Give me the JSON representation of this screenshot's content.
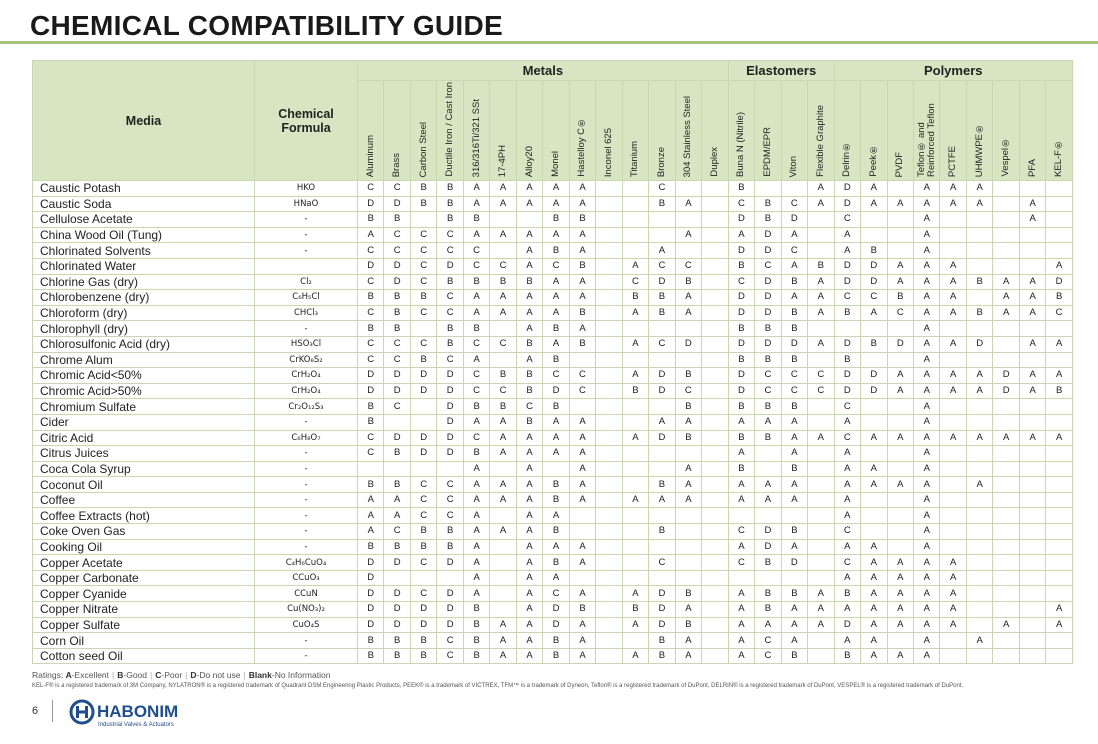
{
  "header": {
    "title": "CHEMICAL COMPATIBILITY GUIDE"
  },
  "table": {
    "media_header": "Media",
    "formula_header": "Chemical Formula",
    "groups": [
      {
        "name": "Metals",
        "materials": [
          "Aluminum",
          "Brass",
          "Carbon Steel",
          "Ductile Iron / Cast Iron",
          "316/316Ti/321 SSt",
          "17-4PH",
          "Alloy20",
          "Monel",
          "Hastelloy C®",
          "Inconel 625",
          "Titanium",
          "Bronze",
          "304 Stainless Steel",
          "Duplex"
        ]
      },
      {
        "name": "Elastomers",
        "materials": [
          "Buna N (Nitrile)",
          "EPDM/EPR",
          "Viton",
          "Flexible Graphite"
        ]
      },
      {
        "name": "Polymers",
        "materials": [
          "Delrin®",
          "Peek®",
          "PVDF",
          "Teflon® and Reinforced Teflon",
          "PCTFE",
          "UHMWPE®",
          "Vespel®",
          "PFA",
          "KEL-F®"
        ]
      }
    ],
    "rows": [
      {
        "media": "Caustic Potash",
        "formula": "HKO",
        "ratings": [
          "C",
          "C",
          "B",
          "B",
          "A",
          "A",
          "A",
          "A",
          "A",
          null,
          null,
          "C",
          null,
          null,
          "B",
          null,
          null,
          "A",
          "D",
          "A",
          null,
          "A",
          "A",
          "A",
          null,
          null,
          null
        ]
      },
      {
        "media": "Caustic Soda",
        "formula": "HNaO",
        "ratings": [
          "D",
          "D",
          "B",
          "B",
          "A",
          "A",
          "A",
          "A",
          "A",
          null,
          null,
          "B",
          "A",
          null,
          "C",
          "B",
          "C",
          "A",
          "D",
          "A",
          "A",
          "A",
          "A",
          "A",
          null,
          "A",
          null
        ]
      },
      {
        "media": "Cellulose Acetate",
        "formula": "-",
        "ratings": [
          "B",
          "B",
          null,
          "B",
          "B",
          null,
          null,
          "B",
          "B",
          null,
          null,
          null,
          null,
          null,
          "D",
          "B",
          "D",
          null,
          "C",
          null,
          null,
          "A",
          null,
          null,
          null,
          "A",
          null
        ]
      },
      {
        "media": "China Wood Oil (Tung)",
        "formula": "-",
        "ratings": [
          "A",
          "C",
          "C",
          "C",
          "A",
          "A",
          "A",
          "A",
          "A",
          null,
          null,
          null,
          "A",
          null,
          "A",
          "D",
          "A",
          null,
          "A",
          null,
          null,
          "A",
          null,
          null,
          null,
          null,
          null
        ]
      },
      {
        "media": "Chlorinated Solvents",
        "formula": "-",
        "ratings": [
          "C",
          "C",
          "C",
          "C",
          "C",
          null,
          "A",
          "B",
          "A",
          null,
          null,
          "A",
          null,
          null,
          "D",
          "D",
          "C",
          null,
          "A",
          "B",
          null,
          "A",
          null,
          null,
          null,
          null,
          null
        ]
      },
      {
        "media": "Chlorinated Water",
        "formula": null,
        "ratings": [
          "D",
          "D",
          "C",
          "D",
          "C",
          "C",
          "A",
          "C",
          "B",
          null,
          "A",
          "C",
          "C",
          null,
          "B",
          "C",
          "A",
          "B",
          "D",
          "D",
          "A",
          "A",
          "A",
          null,
          null,
          null,
          "A"
        ]
      },
      {
        "media": "Chlorine Gas (dry)",
        "formula": "Cl₂",
        "ratings": [
          "C",
          "D",
          "C",
          "B",
          "B",
          "B",
          "B",
          "A",
          "A",
          null,
          "C",
          "D",
          "B",
          null,
          "C",
          "D",
          "B",
          "A",
          "D",
          "D",
          "A",
          "A",
          "A",
          "B",
          "A",
          "A",
          "D"
        ]
      },
      {
        "media": "Chlorobenzene (dry)",
        "formula": "C₆H₅Cl",
        "ratings": [
          "B",
          "B",
          "B",
          "C",
          "A",
          "A",
          "A",
          "A",
          "A",
          null,
          "B",
          "B",
          "A",
          null,
          "D",
          "D",
          "A",
          "A",
          "C",
          "C",
          "B",
          "A",
          "A",
          null,
          "A",
          "A",
          "B"
        ]
      },
      {
        "media": "Chloroform (dry)",
        "formula": "CHCl₃",
        "ratings": [
          "C",
          "B",
          "C",
          "C",
          "A",
          "A",
          "A",
          "A",
          "B",
          null,
          "A",
          "B",
          "A",
          null,
          "D",
          "D",
          "B",
          "A",
          "B",
          "A",
          "C",
          "A",
          "A",
          "B",
          "A",
          "A",
          "C"
        ]
      },
      {
        "media": "Chlorophyll (dry)",
        "formula": "-",
        "ratings": [
          "B",
          "B",
          null,
          "B",
          "B",
          null,
          "A",
          "B",
          "A",
          null,
          null,
          null,
          null,
          null,
          "B",
          "B",
          "B",
          null,
          null,
          null,
          null,
          "A",
          null,
          null,
          null,
          null,
          null
        ]
      },
      {
        "media": "Chlorosulfonic Acid (dry)",
        "formula": "HSO₃Cl",
        "ratings": [
          "C",
          "C",
          "C",
          "B",
          "C",
          "C",
          "B",
          "A",
          "B",
          null,
          "A",
          "C",
          "D",
          null,
          "D",
          "D",
          "D",
          "A",
          "D",
          "B",
          "D",
          "A",
          "A",
          "D",
          null,
          "A",
          "A"
        ]
      },
      {
        "media": "Chrome Alum",
        "formula": "CrKO₈S₂",
        "ratings": [
          "C",
          "C",
          "B",
          "C",
          "A",
          null,
          "A",
          "B",
          null,
          null,
          null,
          null,
          null,
          null,
          "B",
          "B",
          "B",
          null,
          "B",
          null,
          null,
          "A",
          null,
          null,
          null,
          null,
          null
        ]
      },
      {
        "media": "Chromic Acid<50%",
        "formula": "CrH₂O₄",
        "ratings": [
          "D",
          "D",
          "D",
          "D",
          "C",
          "B",
          "B",
          "C",
          "C",
          null,
          "A",
          "D",
          "B",
          null,
          "D",
          "C",
          "C",
          "C",
          "D",
          "D",
          "A",
          "A",
          "A",
          "A",
          "D",
          "A",
          "A"
        ]
      },
      {
        "media": "Chromic Acid>50%",
        "formula": "CrH₂O₄",
        "ratings": [
          "D",
          "D",
          "D",
          "D",
          "C",
          "C",
          "B",
          "D",
          "C",
          null,
          "B",
          "D",
          "C",
          null,
          "D",
          "C",
          "C",
          "C",
          "D",
          "D",
          "A",
          "A",
          "A",
          "A",
          "D",
          "A",
          "B"
        ]
      },
      {
        "media": "Chromium Sulfate",
        "formula": "Cr₂O₁₂S₃",
        "ratings": [
          "B",
          "C",
          null,
          "D",
          "B",
          "B",
          "C",
          "B",
          null,
          null,
          null,
          null,
          "B",
          null,
          "B",
          "B",
          "B",
          null,
          "C",
          null,
          null,
          "A",
          null,
          null,
          null,
          null,
          null
        ]
      },
      {
        "media": "Cider",
        "formula": "-",
        "ratings": [
          "B",
          null,
          null,
          "D",
          "A",
          "A",
          "B",
          "A",
          "A",
          null,
          null,
          "A",
          "A",
          null,
          "A",
          "A",
          "A",
          null,
          "A",
          null,
          null,
          "A",
          null,
          null,
          null,
          null,
          null
        ]
      },
      {
        "media": "Citric Acid",
        "formula": "C₆H₈O₇",
        "ratings": [
          "C",
          "D",
          "D",
          "D",
          "C",
          "A",
          "A",
          "A",
          "A",
          null,
          "A",
          "D",
          "B",
          null,
          "B",
          "B",
          "A",
          "A",
          "C",
          "A",
          "A",
          "A",
          "A",
          "A",
          "A",
          "A",
          "A"
        ]
      },
      {
        "media": "Citrus Juices",
        "formula": "-",
        "ratings": [
          "C",
          "B",
          "D",
          "D",
          "B",
          "A",
          "A",
          "A",
          "A",
          null,
          null,
          null,
          null,
          null,
          "A",
          null,
          "A",
          null,
          "A",
          null,
          null,
          "A",
          null,
          null,
          null,
          null,
          null
        ]
      },
      {
        "media": "Coca Cola Syrup",
        "formula": "-",
        "ratings": [
          null,
          null,
          null,
          null,
          "A",
          null,
          "A",
          null,
          "A",
          null,
          null,
          null,
          "A",
          null,
          "B",
          null,
          "B",
          null,
          "A",
          "A",
          null,
          "A",
          null,
          null,
          null,
          null,
          null
        ]
      },
      {
        "media": "Coconut Oil",
        "formula": "-",
        "ratings": [
          "B",
          "B",
          "C",
          "C",
          "A",
          "A",
          "A",
          "B",
          "A",
          null,
          null,
          "B",
          "A",
          null,
          "A",
          "A",
          "A",
          null,
          "A",
          "A",
          "A",
          "A",
          null,
          "A",
          null,
          null,
          null
        ]
      },
      {
        "media": "Coffee",
        "formula": "-",
        "ratings": [
          "A",
          "A",
          "C",
          "C",
          "A",
          "A",
          "A",
          "B",
          "A",
          null,
          "A",
          "A",
          "A",
          null,
          "A",
          "A",
          "A",
          null,
          "A",
          null,
          null,
          "A",
          null,
          null,
          null,
          null,
          null
        ]
      },
      {
        "media": "Coffee Extracts (hot)",
        "formula": "-",
        "ratings": [
          "A",
          "A",
          "C",
          "C",
          "A",
          null,
          "A",
          "A",
          null,
          null,
          null,
          null,
          null,
          null,
          null,
          null,
          null,
          null,
          "A",
          null,
          null,
          "A",
          null,
          null,
          null,
          null,
          null
        ]
      },
      {
        "media": "Coke Oven Gas",
        "formula": "-",
        "ratings": [
          "A",
          "C",
          "B",
          "B",
          "A",
          "A",
          "A",
          "B",
          null,
          null,
          null,
          "B",
          null,
          null,
          "C",
          "D",
          "B",
          null,
          "C",
          null,
          null,
          "A",
          null,
          null,
          null,
          null,
          null
        ]
      },
      {
        "media": "Cooking Oil",
        "formula": "-",
        "ratings": [
          "B",
          "B",
          "B",
          "B",
          "A",
          null,
          "A",
          "A",
          "A",
          null,
          null,
          null,
          null,
          null,
          "A",
          "D",
          "A",
          null,
          "A",
          "A",
          null,
          "A",
          null,
          null,
          null,
          null,
          null
        ]
      },
      {
        "media": "Copper Acetate",
        "formula": "C₄H₆CuO₄",
        "ratings": [
          "D",
          "D",
          "C",
          "D",
          "A",
          null,
          "A",
          "B",
          "A",
          null,
          null,
          "C",
          null,
          null,
          "C",
          "B",
          "D",
          null,
          "C",
          "A",
          "A",
          "A",
          "A",
          null,
          null,
          null,
          null
        ]
      },
      {
        "media": "Copper Carbonate",
        "formula": "CCuO₃",
        "ratings": [
          "D",
          null,
          null,
          null,
          "A",
          null,
          "A",
          "A",
          null,
          null,
          null,
          null,
          null,
          null,
          null,
          null,
          null,
          null,
          "A",
          "A",
          "A",
          "A",
          "A",
          null,
          null,
          null,
          null
        ]
      },
      {
        "media": "Copper Cyanide",
        "formula": "CCuN",
        "ratings": [
          "D",
          "D",
          "C",
          "D",
          "A",
          null,
          "A",
          "C",
          "A",
          null,
          "A",
          "D",
          "B",
          null,
          "A",
          "B",
          "B",
          "A",
          "B",
          "A",
          "A",
          "A",
          "A",
          null,
          null,
          null,
          null
        ]
      },
      {
        "media": "Copper Nitrate",
        "formula": "Cu(NO₃)₂",
        "ratings": [
          "D",
          "D",
          "D",
          "D",
          "B",
          null,
          "A",
          "D",
          "B",
          null,
          "B",
          "D",
          "A",
          null,
          "A",
          "B",
          "A",
          "A",
          "A",
          "A",
          "A",
          "A",
          "A",
          null,
          null,
          null,
          "A"
        ]
      },
      {
        "media": "Copper Sulfate",
        "formula": "CuO₄S",
        "ratings": [
          "D",
          "D",
          "D",
          "D",
          "B",
          "A",
          "A",
          "D",
          "A",
          null,
          "A",
          "D",
          "B",
          null,
          "A",
          "A",
          "A",
          "A",
          "D",
          "A",
          "A",
          "A",
          "A",
          null,
          "A",
          null,
          "A"
        ]
      },
      {
        "media": "Corn Oil",
        "formula": "-",
        "ratings": [
          "B",
          "B",
          "B",
          "C",
          "B",
          "A",
          "A",
          "B",
          "A",
          null,
          null,
          "B",
          "A",
          null,
          "A",
          "C",
          "A",
          null,
          "A",
          "A",
          null,
          "A",
          null,
          "A",
          null,
          null,
          null
        ]
      },
      {
        "media": "Cotton seed Oil",
        "formula": "-",
        "ratings": [
          "B",
          "B",
          "B",
          "C",
          "B",
          "A",
          "A",
          "B",
          "A",
          null,
          "A",
          "B",
          "A",
          null,
          "A",
          "C",
          "B",
          null,
          "B",
          "A",
          "A",
          "A",
          null,
          null,
          null,
          null,
          null
        ]
      }
    ]
  },
  "footer": {
    "ratings_prefix": "Ratings:",
    "ratings": [
      {
        "key": "A",
        "label": "-Excellent"
      },
      {
        "key": "B",
        "label": "-Good"
      },
      {
        "key": "C",
        "label": "-Poor"
      },
      {
        "key": "D",
        "label": "-Do not use"
      },
      {
        "key": "Blank",
        "label": "-No Information"
      }
    ],
    "trademarks": "KEL-F® is a registered trademark of 3M Company, NYLATRON® is a registered trademark of Quadrant DSM Engineering Plastic Products, PEEK® is a trademark of VICTREX, TFM™ is a trademark of Dyneon, Teflon® is a registered trademark of DuPont, DELRIN® is a registered trademark of DuPont, VESPEL® is a registered trademark of DuPont.",
    "page": "6",
    "logo": "HABONIM",
    "tagline": "Industrial Valves & Actuators"
  }
}
